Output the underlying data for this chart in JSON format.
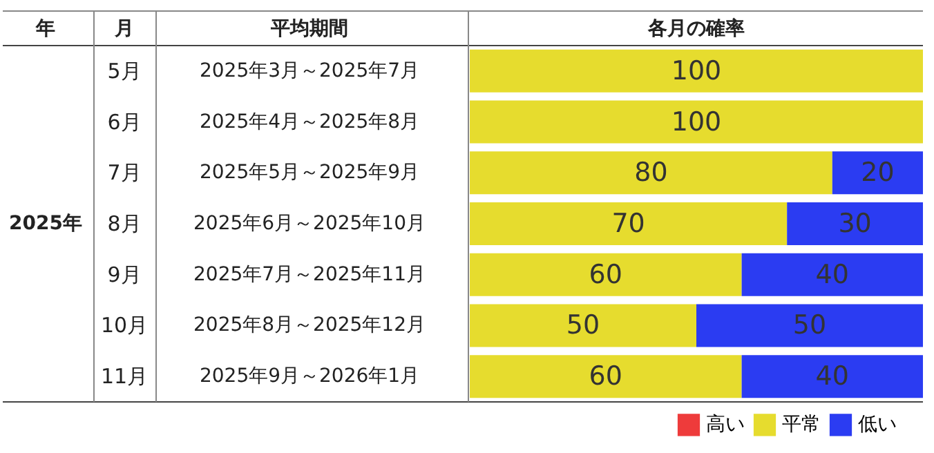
{
  "chart_data": {
    "type": "bar",
    "orientation": "horizontal",
    "stacked": true,
    "title": "各月の確率",
    "categories": [
      "5月",
      "6月",
      "7月",
      "8月",
      "9月",
      "10月",
      "11月"
    ],
    "series": [
      {
        "name": "高い",
        "color": "#ee3b3b",
        "values": [
          0,
          0,
          0,
          0,
          0,
          0,
          0
        ],
        "value_labels": [
          null,
          null,
          null,
          null,
          null,
          null,
          null
        ]
      },
      {
        "name": "平常",
        "color": "#e6dc2e",
        "values": [
          100,
          100,
          80,
          70,
          60,
          50,
          60
        ],
        "value_labels": [
          "100",
          "100",
          "80",
          "70",
          "60",
          "50",
          "60"
        ]
      },
      {
        "name": "低い",
        "color": "#2b3cf2",
        "values": [
          0,
          0,
          20,
          30,
          40,
          50,
          40
        ],
        "value_labels": [
          null,
          null,
          "20",
          "30",
          "40",
          "50",
          "40"
        ]
      }
    ],
    "annotations": [
      "年",
      "月",
      "平均期間",
      "2025年",
      "2025年3月～2025年7月",
      "2025年4月～2025年8月",
      "2025年5月～2025年9月",
      "2025年6月～2025年10月",
      "2025年7月～2025年11月",
      "2025年8月～2025年12月",
      "2025年9月～2026年1月"
    ],
    "legend": "bottom right"
  }
}
